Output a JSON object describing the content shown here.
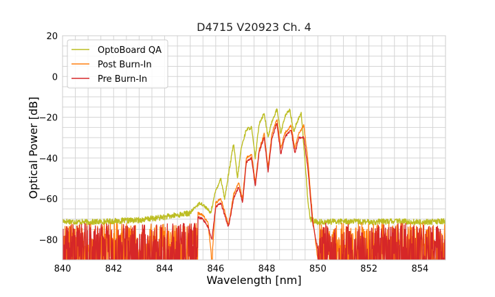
{
  "chart_data": {
    "type": "line",
    "title": "D4715 V20923 Ch. 4",
    "xlabel": "Wavelength [nm]",
    "ylabel": "Optical Power [dB]",
    "xlim": [
      840,
      855
    ],
    "ylim": [
      -90,
      20
    ],
    "xticks": [
      "840",
      "842",
      "844",
      "846",
      "848",
      "850",
      "852",
      "854"
    ],
    "yticks": [
      "20",
      "0",
      "−20",
      "−40",
      "−60",
      "−80"
    ],
    "grid": true,
    "legend_position": "top-left",
    "series": [
      {
        "name": "OptoBoard QA",
        "color": "#bcbd22",
        "noise_floor": -71,
        "points": [
          [
            840,
            -71
          ],
          [
            841,
            -71.5
          ],
          [
            842,
            -71
          ],
          [
            843,
            -70.5
          ],
          [
            844,
            -69
          ],
          [
            844.5,
            -68
          ],
          [
            845,
            -67
          ],
          [
            845.2,
            -64
          ],
          [
            845.4,
            -62
          ],
          [
            845.6,
            -64
          ],
          [
            845.8,
            -67
          ],
          [
            846,
            -56
          ],
          [
            846.2,
            -50
          ],
          [
            846.35,
            -60
          ],
          [
            846.5,
            -48
          ],
          [
            846.7,
            -33
          ],
          [
            846.85,
            -50
          ],
          [
            847.0,
            -35
          ],
          [
            847.2,
            -26
          ],
          [
            847.4,
            -25
          ],
          [
            847.55,
            -40
          ],
          [
            847.7,
            -23
          ],
          [
            847.9,
            -18
          ],
          [
            848.05,
            -30
          ],
          [
            848.2,
            -22
          ],
          [
            848.4,
            -16
          ],
          [
            848.55,
            -28
          ],
          [
            848.7,
            -20
          ],
          [
            848.9,
            -16
          ],
          [
            849.05,
            -27
          ],
          [
            849.2,
            -22
          ],
          [
            849.35,
            -18
          ],
          [
            849.5,
            -42
          ],
          [
            849.6,
            -60
          ],
          [
            849.7,
            -70
          ],
          [
            850,
            -71.5
          ],
          [
            851,
            -71
          ],
          [
            852,
            -71.5
          ],
          [
            853,
            -71
          ],
          [
            854,
            -71.5
          ],
          [
            855,
            -71
          ]
        ]
      },
      {
        "name": "Post Burn-In",
        "color": "#ff7f0e",
        "noise_floor": -90,
        "points": [
          [
            845.3,
            -67
          ],
          [
            845.5,
            -68
          ],
          [
            845.7,
            -72
          ],
          [
            845.85,
            -90
          ],
          [
            846,
            -62
          ],
          [
            846.2,
            -60
          ],
          [
            846.35,
            -66
          ],
          [
            846.5,
            -73
          ],
          [
            846.7,
            -58
          ],
          [
            846.9,
            -52
          ],
          [
            847.05,
            -60
          ],
          [
            847.2,
            -40
          ],
          [
            847.4,
            -38
          ],
          [
            847.55,
            -52
          ],
          [
            847.7,
            -36
          ],
          [
            847.9,
            -28
          ],
          [
            848.05,
            -45
          ],
          [
            848.2,
            -28
          ],
          [
            848.4,
            -21
          ],
          [
            848.55,
            -35
          ],
          [
            848.7,
            -28
          ],
          [
            848.95,
            -24
          ],
          [
            849.1,
            -35
          ],
          [
            849.25,
            -28
          ],
          [
            849.45,
            -24
          ],
          [
            849.6,
            -40
          ],
          [
            849.8,
            -70
          ],
          [
            850,
            -90
          ]
        ]
      },
      {
        "name": "Pre Burn-In",
        "color": "#d62728",
        "noise_floor": -90,
        "points": [
          [
            845.3,
            -69
          ],
          [
            845.5,
            -70
          ],
          [
            845.7,
            -74
          ],
          [
            845.85,
            -80
          ],
          [
            846,
            -64
          ],
          [
            846.2,
            -62
          ],
          [
            846.35,
            -68
          ],
          [
            846.5,
            -74
          ],
          [
            846.7,
            -60
          ],
          [
            846.9,
            -54
          ],
          [
            847.05,
            -62
          ],
          [
            847.2,
            -42
          ],
          [
            847.4,
            -40
          ],
          [
            847.55,
            -54
          ],
          [
            847.7,
            -37
          ],
          [
            847.9,
            -30
          ],
          [
            848.05,
            -47
          ],
          [
            848.2,
            -30
          ],
          [
            848.4,
            -23
          ],
          [
            848.55,
            -38
          ],
          [
            848.7,
            -30
          ],
          [
            848.95,
            -26
          ],
          [
            849.1,
            -38
          ],
          [
            849.25,
            -30
          ],
          [
            849.45,
            -30
          ],
          [
            849.6,
            -44
          ],
          [
            849.8,
            -72
          ],
          [
            850,
            -85
          ]
        ]
      }
    ]
  }
}
